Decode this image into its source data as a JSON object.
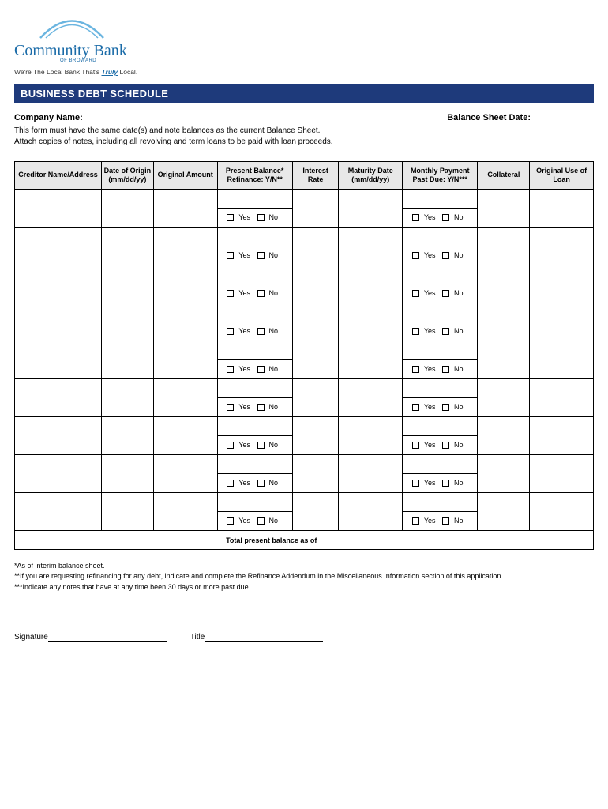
{
  "logo": {
    "bank_name": "Community Bank",
    "sub": "OF BROWARD",
    "tagline_pre": "We're The Local Bank That's ",
    "tagline_em": "Truly",
    "tagline_post": " Local.",
    "arc_color": "#6bb5e0"
  },
  "title": "BUSINESS DEBT SCHEDULE",
  "header": {
    "company_label": "Company Name:",
    "date_label": "Balance Sheet Date:"
  },
  "instructions": {
    "line1": "This form must have the same date(s) and note balances as the current Balance Sheet.",
    "line2": "Attach copies of notes, including all revolving and term loans to be paid with loan proceeds."
  },
  "columns": [
    "Creditor Name/Address",
    "Date of Origin (mm/dd/yy)",
    "Original Amount",
    "Present Balance* Refinance: Y/N**",
    "Interest Rate",
    "Maturity Date (mm/dd/yy)",
    "Monthly Payment Past Due: Y/N***",
    "Collateral",
    "Original Use of Loan"
  ],
  "yn": {
    "yes": "Yes",
    "no": "No"
  },
  "total_label": "Total present balance as of",
  "footnotes": {
    "f1": "*As of interim balance sheet.",
    "f2": "**If you are requesting refinancing for any debt, indicate and complete the Refinance Addendum in the Miscellaneous Information section of this application.",
    "f3": "***Indicate any notes that have at any time been 30 days or more past due."
  },
  "signature": {
    "sig_label": "Signature",
    "title_label": "Title"
  },
  "num_entries": 9,
  "colors": {
    "title_bar": "#1e3a7b",
    "header_bg": "#e8e8e8",
    "brand": "#1a6ba8"
  }
}
